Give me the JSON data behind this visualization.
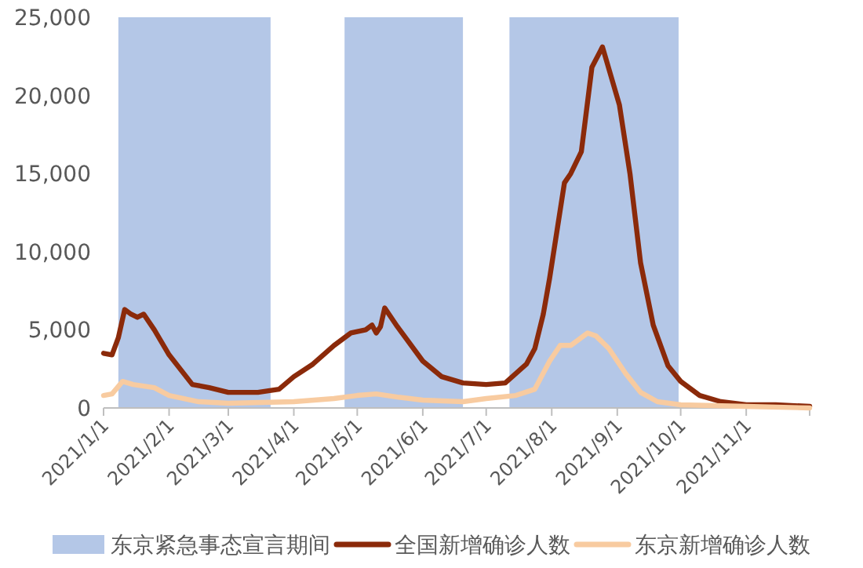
{
  "chart_data": {
    "type": "line",
    "xlim": [
      "2021-01-01",
      "2021-12-01"
    ],
    "xticks": [
      {
        "value": "2021-01-01",
        "label": "2021/1/1"
      },
      {
        "value": "2021-02-01",
        "label": "2021/2/1"
      },
      {
        "value": "2021-03-01",
        "label": "2021/3/1"
      },
      {
        "value": "2021-04-01",
        "label": "2021/4/1"
      },
      {
        "value": "2021-05-01",
        "label": "2021/5/1"
      },
      {
        "value": "2021-06-01",
        "label": "2021/6/1"
      },
      {
        "value": "2021-07-01",
        "label": "2021/7/1"
      },
      {
        "value": "2021-08-01",
        "label": "2021/8/1"
      },
      {
        "value": "2021-09-01",
        "label": "2021/9/1"
      },
      {
        "value": "2021-10-01",
        "label": "2021/10/1"
      },
      {
        "value": "2021-11-01",
        "label": "2021/11/1"
      },
      {
        "value": "2021-12-01",
        "label": null
      }
    ],
    "ylim": [
      0,
      25000
    ],
    "yticks": [
      0,
      {
        "value": 5000,
        "label": "5,000"
      },
      {
        "value": 10000,
        "label": "10,000"
      },
      {
        "value": 15000,
        "label": "15,000"
      },
      {
        "value": 20000,
        "label": "20,000"
      },
      {
        "value": 25000,
        "label": "25,000"
      }
    ],
    "bands": [
      {
        "axis": "x",
        "from": "2021-01-08",
        "to": "2021-03-21",
        "label": "东京紧急事态宣言期间",
        "color": "#b4c7e7"
      },
      {
        "axis": "x",
        "from": "2021-04-25",
        "to": "2021-06-20",
        "color": "#b4c7e7"
      },
      {
        "axis": "x",
        "from": "2021-07-12",
        "to": "2021-09-30",
        "color": "#b4c7e7"
      }
    ],
    "legend": "bottom",
    "series": [
      {
        "name": "全国新增确诊人数",
        "color": "#8b2a0a",
        "x": [
          "2021-01-01",
          "2021-01-05",
          "2021-01-08",
          "2021-01-11",
          "2021-01-14",
          "2021-01-17",
          "2021-01-20",
          "2021-01-25",
          "2021-02-01",
          "2021-02-12",
          "2021-02-20",
          "2021-03-01",
          "2021-03-15",
          "2021-03-25",
          "2021-04-01",
          "2021-04-10",
          "2021-04-20",
          "2021-04-28",
          "2021-05-05",
          "2021-05-08",
          "2021-05-10",
          "2021-05-12",
          "2021-05-14",
          "2021-05-20",
          "2021-06-01",
          "2021-06-10",
          "2021-06-20",
          "2021-07-01",
          "2021-07-10",
          "2021-07-20",
          "2021-07-24",
          "2021-07-28",
          "2021-07-31",
          "2021-08-07",
          "2021-08-10",
          "2021-08-15",
          "2021-08-20",
          "2021-08-25",
          "2021-09-02",
          "2021-09-07",
          "2021-09-12",
          "2021-09-18",
          "2021-09-25",
          "2021-10-01",
          "2021-10-10",
          "2021-10-20",
          "2021-11-01",
          "2021-11-15",
          "2021-12-01"
        ],
        "values": [
          3500,
          3400,
          4500,
          6300,
          6000,
          5800,
          6000,
          5000,
          3400,
          1500,
          1300,
          1000,
          1000,
          1200,
          2000,
          2800,
          4000,
          4800,
          5000,
          5300,
          4800,
          5200,
          6400,
          5200,
          3000,
          2000,
          1600,
          1500,
          1600,
          2800,
          3800,
          6000,
          8300,
          14400,
          15000,
          16400,
          21800,
          23100,
          19400,
          15000,
          9300,
          5300,
          2700,
          1700,
          800,
          400,
          200,
          200,
          100
        ]
      },
      {
        "name": "东京新增确诊人数",
        "color": "#f8cba0",
        "x": [
          "2021-01-01",
          "2021-01-05",
          "2021-01-10",
          "2021-01-15",
          "2021-01-25",
          "2021-02-01",
          "2021-02-15",
          "2021-03-01",
          "2021-04-01",
          "2021-04-20",
          "2021-05-01",
          "2021-05-10",
          "2021-05-20",
          "2021-06-01",
          "2021-06-20",
          "2021-07-01",
          "2021-07-15",
          "2021-07-24",
          "2021-07-31",
          "2021-08-05",
          "2021-08-10",
          "2021-08-18",
          "2021-08-22",
          "2021-08-28",
          "2021-09-05",
          "2021-09-12",
          "2021-09-20",
          "2021-10-01",
          "2021-11-01",
          "2021-12-01"
        ],
        "values": [
          800,
          900,
          1700,
          1500,
          1300,
          800,
          400,
          300,
          400,
          600,
          800,
          900,
          700,
          500,
          400,
          600,
          800,
          1200,
          3000,
          4000,
          4000,
          4800,
          4600,
          3800,
          2200,
          1000,
          400,
          200,
          100,
          0
        ]
      }
    ]
  }
}
